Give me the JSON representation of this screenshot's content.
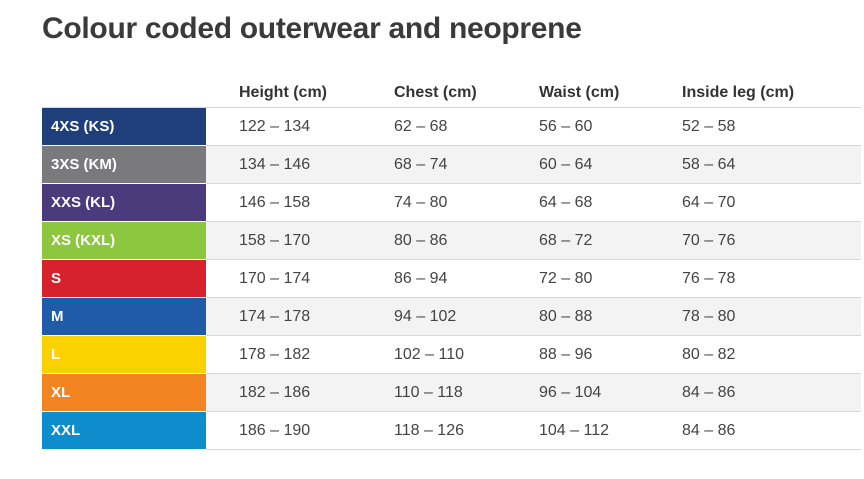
{
  "title": "Colour coded outerwear and neoprene",
  "columns": [
    "",
    "Height (cm)",
    "Chest (cm)",
    "Waist (cm)",
    "Inside leg (cm)"
  ],
  "rows": [
    {
      "size": "4XS (KS)",
      "color": "#1e3f7a",
      "height": "122 – 134",
      "chest": "62 – 68",
      "waist": "56 – 60",
      "leg": "52 – 58"
    },
    {
      "size": "3XS (KM)",
      "color": "#7a7a7c",
      "height": "134 – 146",
      "chest": "68 – 74",
      "waist": "60 – 64",
      "leg": "58 – 64"
    },
    {
      "size": "XXS (KL)",
      "color": "#4b3a7c",
      "height": "146 – 158",
      "chest": "74 – 80",
      "waist": "64 – 68",
      "leg": "64 – 70"
    },
    {
      "size": "XS (KXL)",
      "color": "#8dc63f",
      "height": "158 – 170",
      "chest": "80 – 86",
      "waist": "68 – 72",
      "leg": "70 – 76"
    },
    {
      "size": "S",
      "color": "#d7222e",
      "height": "170 – 174",
      "chest": "86 – 94",
      "waist": "72 – 80",
      "leg": "76 – 78"
    },
    {
      "size": "M",
      "color": "#1f5ba8",
      "height": "174 – 178",
      "chest": "94 – 102",
      "waist": "80 – 88",
      "leg": "78 – 80"
    },
    {
      "size": "L",
      "color": "#fcd100",
      "height": "178 – 182",
      "chest": "102 – 110",
      "waist": "88 – 96",
      "leg": "80 – 82"
    },
    {
      "size": "XL",
      "color": "#f28521",
      "height": "182 – 186",
      "chest": "110 – 118",
      "waist": "96 – 104",
      "leg": "84 – 86"
    },
    {
      "size": "XXL",
      "color": "#0e8dcc",
      "height": "186 – 190",
      "chest": "118 – 126",
      "waist": "104 – 112",
      "leg": "84 – 86"
    }
  ]
}
